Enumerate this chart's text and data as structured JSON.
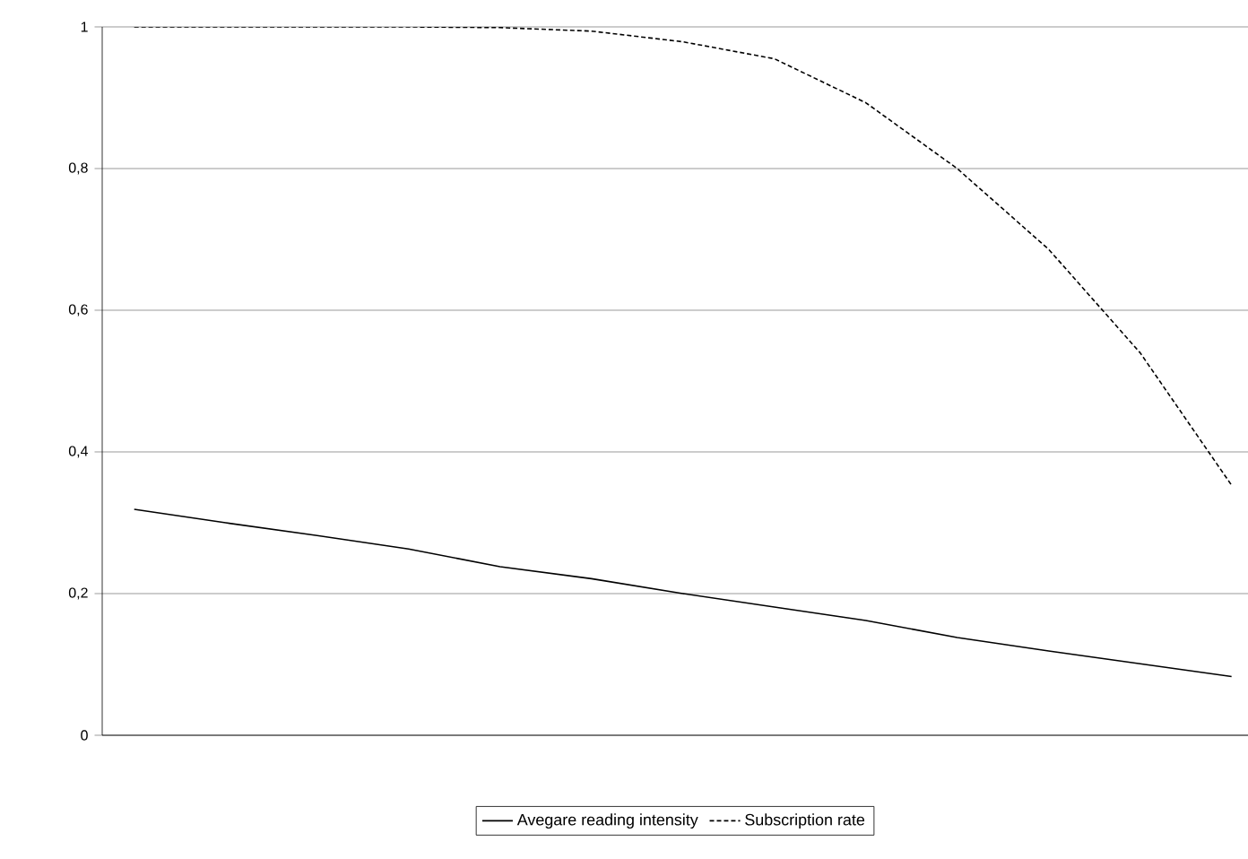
{
  "chart_data": {
    "type": "line",
    "categories": [
      null,
      null,
      null,
      null,
      null,
      null,
      null,
      null,
      null,
      null,
      null,
      null,
      null
    ],
    "series": [
      {
        "name": "Avegare reading intensity",
        "color": "#000000",
        "line_style": "solid",
        "values": [
          0.319,
          0.3,
          0.282,
          0.263,
          0.238,
          0.221,
          0.2,
          0.181,
          0.162,
          0.138,
          0.119,
          0.101,
          0.083
        ]
      },
      {
        "name": "Subscription rate",
        "color": "#000000",
        "line_style": "dashed",
        "values": [
          1,
          1,
          1,
          1,
          0.999,
          0.994,
          0.979,
          0.955,
          0.893,
          0.8,
          0.686,
          0.54,
          0.353
        ]
      }
    ],
    "ylim": [
      0,
      1
    ],
    "yticks": [
      {
        "value": 0,
        "label": "0"
      },
      {
        "value": 0.2,
        "label": "0,2"
      },
      {
        "value": 0.4,
        "label": "0,4"
      },
      {
        "value": 0.6,
        "label": "0,6"
      },
      {
        "value": 0.8,
        "label": "0,8"
      },
      {
        "value": 1,
        "label": "1"
      }
    ],
    "grid": "y",
    "legend": "bottom",
    "marker": "none"
  }
}
